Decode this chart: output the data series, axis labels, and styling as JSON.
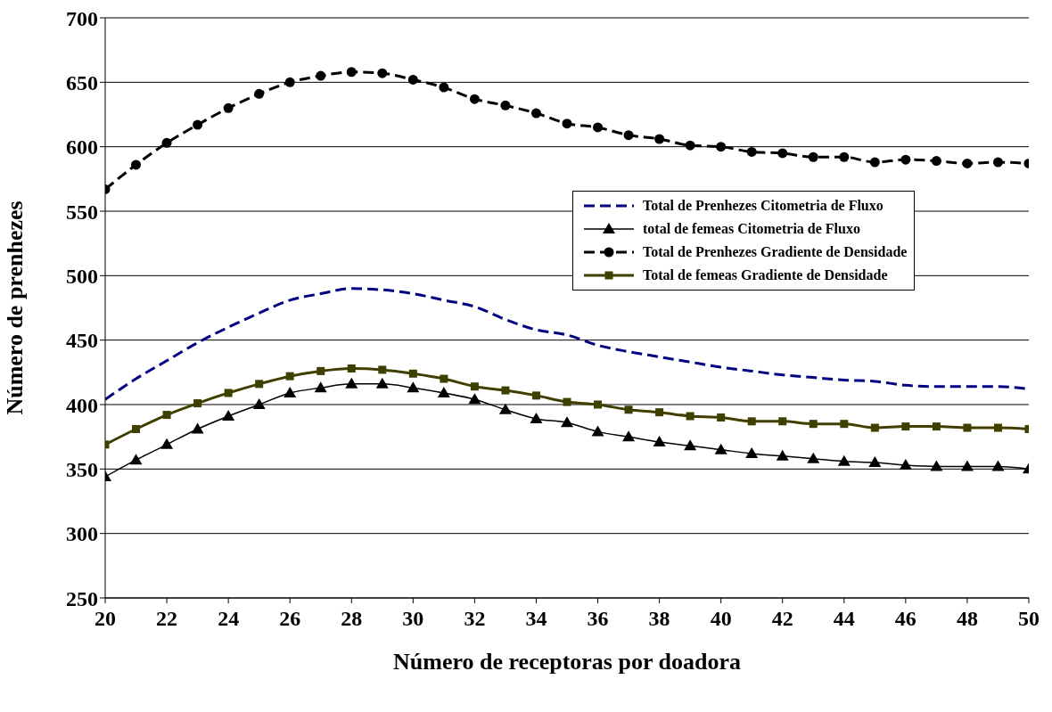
{
  "chart_data": {
    "type": "line",
    "xlabel": "Número de receptoras por doadora",
    "ylabel": "Número de prenhezes",
    "x": [
      20,
      21,
      22,
      23,
      24,
      25,
      26,
      27,
      28,
      29,
      30,
      31,
      32,
      33,
      34,
      35,
      36,
      37,
      38,
      39,
      40,
      41,
      42,
      43,
      44,
      45,
      46,
      47,
      48,
      49,
      50
    ],
    "xlim": [
      20,
      50
    ],
    "xticks": [
      20,
      22,
      24,
      26,
      28,
      30,
      32,
      34,
      36,
      38,
      40,
      42,
      44,
      46,
      48,
      50
    ],
    "ylim": [
      250,
      700
    ],
    "yticks": [
      250,
      300,
      350,
      400,
      450,
      500,
      550,
      600,
      650,
      700
    ],
    "grid": "y",
    "legend": "right",
    "series": [
      {
        "name": "Total de Prenhezes Citometria de Fluxo",
        "color": "#000080",
        "marker": "none",
        "line_style": "dashed",
        "values": [
          404,
          420,
          434,
          448,
          460,
          471,
          481,
          486,
          490,
          489,
          486,
          481,
          476,
          466,
          458,
          454,
          446,
          441,
          437,
          433,
          429,
          426,
          423,
          421,
          419,
          418,
          415,
          414,
          414,
          414,
          412
        ]
      },
      {
        "name": "total de femeas Citometria de Fluxo",
        "color": "#000000",
        "marker": "triangle",
        "line_style": "solid",
        "values": [
          344,
          357,
          369,
          381,
          391,
          400,
          409,
          413,
          416,
          416,
          413,
          409,
          404,
          396,
          389,
          386,
          379,
          375,
          371,
          368,
          365,
          362,
          360,
          358,
          356,
          355,
          353,
          352,
          352,
          352,
          350
        ]
      },
      {
        "name": "Total de Prenhezes Gradiente de Densidade",
        "color": "#000000",
        "marker": "circle",
        "line_style": "dashed",
        "values": [
          567,
          586,
          603,
          617,
          630,
          641,
          650,
          655,
          658,
          657,
          652,
          646,
          637,
          632,
          626,
          618,
          615,
          609,
          606,
          601,
          600,
          596,
          595,
          592,
          592,
          588,
          590,
          589,
          587,
          588,
          587
        ]
      },
      {
        "name": "Total de femeas Gradiente de Densidade",
        "color": "#3f3f00",
        "marker": "square",
        "line_style": "solid",
        "values": [
          369,
          381,
          392,
          401,
          409,
          416,
          422,
          426,
          428,
          427,
          424,
          420,
          414,
          411,
          407,
          402,
          400,
          396,
          394,
          391,
          390,
          387,
          387,
          385,
          385,
          382,
          383,
          383,
          382,
          382,
          381
        ]
      }
    ]
  }
}
